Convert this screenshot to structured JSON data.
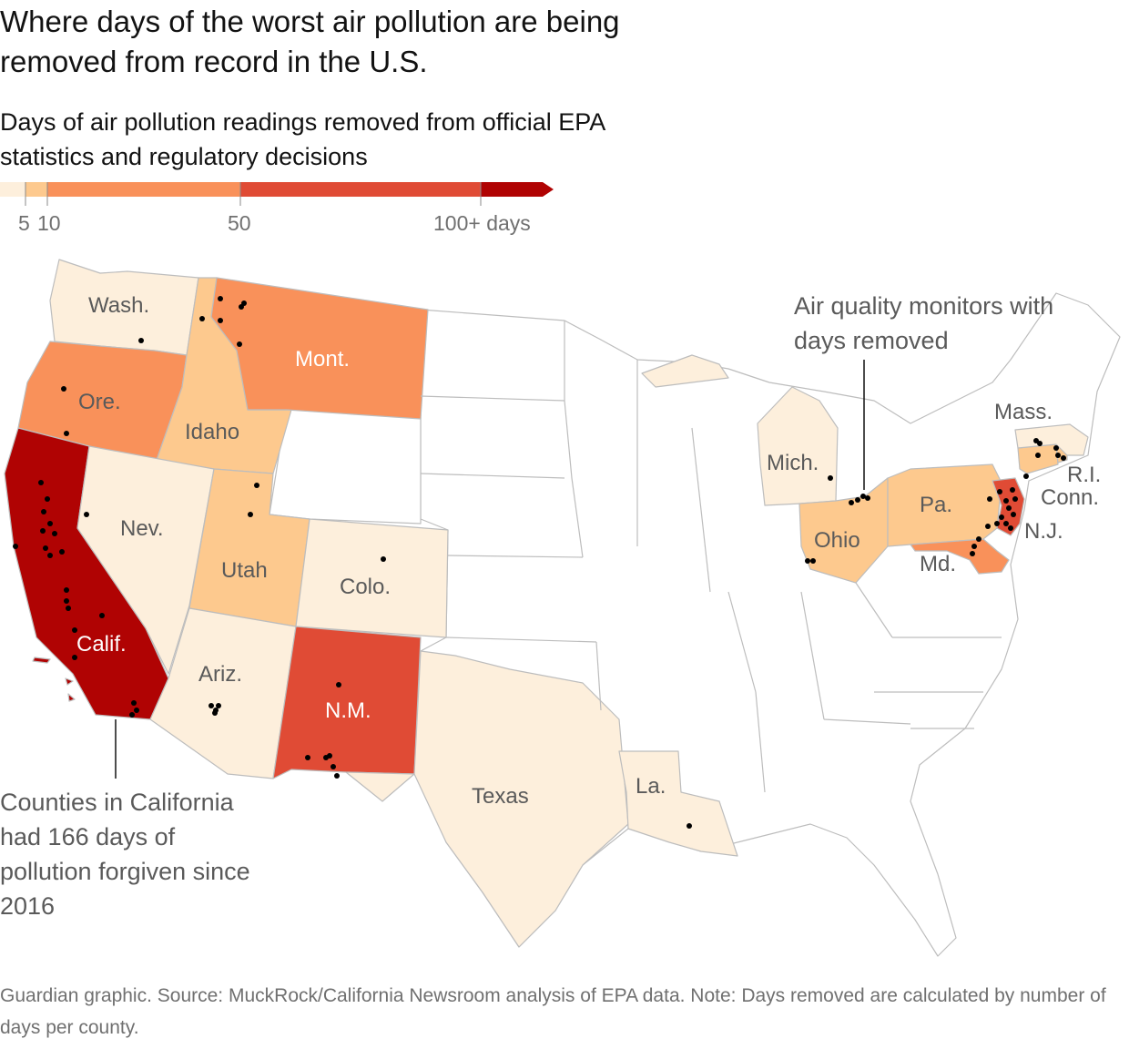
{
  "title": "Where days of the worst air pollution are being removed from record in the U.S.",
  "subtitle": "Days of air pollution readings removed from official EPA statistics and regulatory decisions",
  "legend": {
    "ticks": [
      "5",
      "10",
      "50",
      "100+ days"
    ],
    "colors": [
      "#fdefdc",
      "#fdc98e",
      "#f9915a",
      "#e04b35",
      "#b00303"
    ]
  },
  "states": {
    "wash": "Wash.",
    "ore": "Ore.",
    "calif": "Calif.",
    "nev": "Nev.",
    "idaho": "Idaho",
    "mont": "Mont.",
    "utah": "Utah",
    "ariz": "Ariz.",
    "colo": "Colo.",
    "nm": "N.M.",
    "texas": "Texas",
    "la": "La.",
    "mich": "Mich.",
    "ohio": "Ohio",
    "pa": "Pa.",
    "md": "Md.",
    "nj": "N.J.",
    "conn": "Conn.",
    "ri": "R.I.",
    "mass": "Mass."
  },
  "annotations": {
    "monitors": "Air quality monitors with days removed",
    "california": "Counties in California had 166 days of pollution forgiven since 2016"
  },
  "footer": "Guardian graphic. Source: MuckRock/California Newsroom analysis of EPA data. Note: Days removed are calculated by number of days per county.",
  "colors": {
    "stroke": "#bdbdbd",
    "neutral": "#ffffff",
    "dot": "#000000"
  }
}
